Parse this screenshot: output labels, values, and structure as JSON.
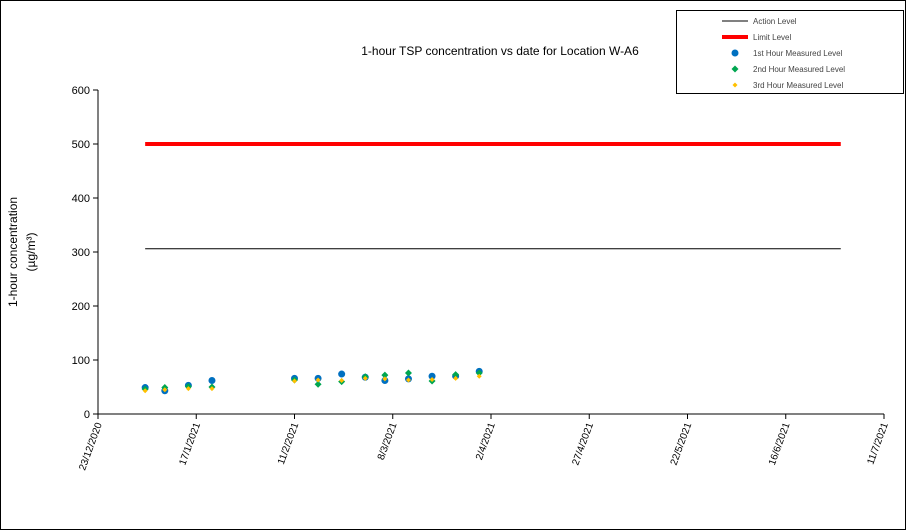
{
  "chart_data": {
    "type": "scatter",
    "title": "1-hour TSP concentration vs date for Location  W-A6",
    "y_label": "1-hour concentration",
    "y_label_unit": "(µg/m³)",
    "xlim": [
      "23/12/2020",
      "11/7/2021"
    ],
    "xticks": [
      "23/12/2020",
      "17/1/2021",
      "11/2/2021",
      "8/3/2021",
      "2/4/2021",
      "27/4/2021",
      "22/5/2021",
      "16/6/2021",
      "11/7/2021"
    ],
    "ylim": [
      0,
      600
    ],
    "yticks": [
      0,
      100,
      200,
      300,
      400,
      500,
      600
    ],
    "legend": "top-right",
    "series": [
      {
        "name": "Action Level",
        "color": "#000000",
        "style": "line",
        "width": 1,
        "x": [
          "4/1/2021",
          "30/6/2021"
        ],
        "values": [
          306,
          306
        ]
      },
      {
        "name": "Limit Level",
        "color": "#ff0000",
        "style": "line",
        "width": 4,
        "x": [
          "4/1/2021",
          "30/6/2021"
        ],
        "values": [
          500,
          500
        ]
      },
      {
        "name": "1st Hour Measured Level",
        "color": "#0070c0",
        "style": "marker",
        "marker": "circle",
        "x": [
          "4/1/2021",
          "9/1/2021",
          "15/1/2021",
          "21/1/2021",
          "11/2/2021",
          "17/2/2021",
          "23/2/2021",
          "1/3/2021",
          "6/3/2021",
          "12/3/2021",
          "18/3/2021",
          "24/3/2021",
          "30/3/2021"
        ],
        "values": [
          49,
          43,
          53,
          62,
          66,
          66,
          74,
          68,
          62,
          65,
          70,
          70,
          79
        ]
      },
      {
        "name": "2nd Hour Measured Level",
        "color": "#00a651",
        "style": "marker",
        "marker": "diamond",
        "x": [
          "4/1/2021",
          "9/1/2021",
          "15/1/2021",
          "21/1/2021",
          "11/2/2021",
          "17/2/2021",
          "23/2/2021",
          "1/3/2021",
          "6/3/2021",
          "12/3/2021",
          "18/3/2021",
          "24/3/2021",
          "30/3/2021"
        ],
        "values": [
          46,
          49,
          51,
          50,
          63,
          55,
          60,
          69,
          72,
          76,
          61,
          73,
          76
        ]
      },
      {
        "name": "3rd Hour Measured Level",
        "color": "#ffc000",
        "style": "marker",
        "marker": "diamond-small",
        "x": [
          "4/1/2021",
          "9/1/2021",
          "15/1/2021",
          "21/1/2021",
          "11/2/2021",
          "17/2/2021",
          "23/2/2021",
          "1/3/2021",
          "6/3/2021",
          "12/3/2021",
          "18/3/2021",
          "24/3/2021",
          "30/3/2021"
        ],
        "values": [
          43,
          45,
          47,
          47,
          61,
          63,
          62,
          66,
          65,
          63,
          64,
          66,
          70
        ]
      }
    ]
  }
}
